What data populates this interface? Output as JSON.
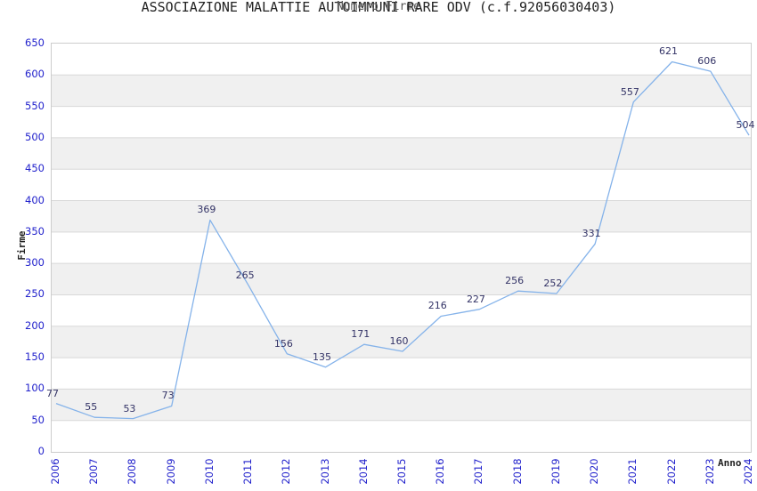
{
  "title": "ASSOCIAZIONE MALATTIE AUTOIMMUNI RARE ODV (c.f.92056030403)",
  "subtitle": "Numero Firme",
  "chart_data": {
    "type": "line",
    "title": "ASSOCIAZIONE MALATTIE AUTOIMMUNI RARE ODV (c.f.92056030403)",
    "subtitle": "Numero Firme",
    "xlabel": "Anno",
    "ylabel": "Firme",
    "categories": [
      "2006",
      "2007",
      "2008",
      "2009",
      "2010",
      "2011",
      "2012",
      "2013",
      "2014",
      "2015",
      "2016",
      "2017",
      "2018",
      "2019",
      "2020",
      "2021",
      "2022",
      "2023",
      "2024"
    ],
    "values": [
      77,
      55,
      53,
      73,
      369,
      265,
      156,
      135,
      171,
      160,
      216,
      227,
      256,
      252,
      331,
      557,
      621,
      606,
      504
    ],
    "ylim": [
      0,
      650
    ],
    "ytick_step": 50,
    "grid": true,
    "legend": "none",
    "data_labels_visible": true,
    "colors": {
      "line": "#85b3ea",
      "tick_label": "#2222cc",
      "data_label": "#333366",
      "band": "#f0f0f0",
      "gridline": "#d8d8d8",
      "border": "#cccccc",
      "title": "#222222",
      "subtitle": "#555555",
      "axis_title": "#222222"
    }
  }
}
